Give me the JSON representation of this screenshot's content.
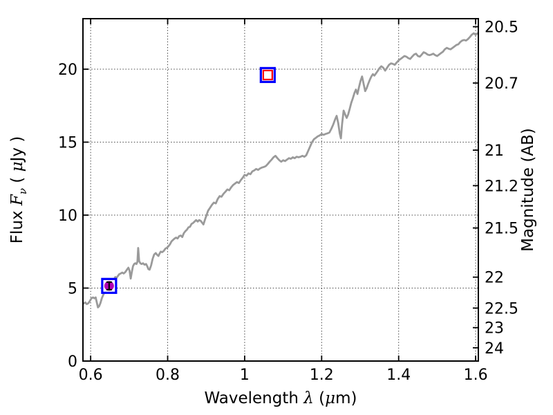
{
  "figure": {
    "background": "#ffffff",
    "spine_color": "#000000",
    "grid_color": "#444444"
  },
  "chart_data": {
    "type": "line",
    "title": "",
    "xlabel_text": "Wavelength λ (μm)",
    "ylabel_left_text": "Flux Fν ( μJy )",
    "ylabel_right_text": "Magnitude (AB)",
    "xlabel_parts": [
      {
        "text": "Wavelength  ",
        "style": "normal"
      },
      {
        "text": "λ",
        "style": "italic"
      },
      {
        "text": " (",
        "style": "normal"
      },
      {
        "text": "μ",
        "style": "italic"
      },
      {
        "text": "m)",
        "style": "normal"
      }
    ],
    "ylabel_left_parts": [
      {
        "text": "Flux  ",
        "style": "normal"
      },
      {
        "text": "F",
        "style": "italic"
      },
      {
        "text": "ν",
        "style": "italic",
        "sub": true
      },
      {
        "text": "  ( ",
        "style": "normal"
      },
      {
        "text": "μ",
        "style": "italic"
      },
      {
        "text": "Jy )",
        "style": "normal"
      }
    ],
    "ylabel_right_parts": [
      {
        "text": "Magnitude (AB)",
        "style": "normal"
      }
    ],
    "xlim": [
      0.58,
      1.607
    ],
    "ylim": [
      0,
      23.46
    ],
    "legend": "none",
    "grid": {
      "on": true,
      "style": "dotted",
      "color": "#444444",
      "x_values": [
        0.6,
        0.8,
        1.0,
        1.2,
        1.4,
        1.6
      ],
      "flux_values": [
        5,
        10,
        15,
        20
      ]
    },
    "x_ticks": [
      {
        "value": 0.6,
        "label": "0.6"
      },
      {
        "value": 0.8,
        "label": "0.8"
      },
      {
        "value": 1.0,
        "label": "1"
      },
      {
        "value": 1.2,
        "label": "1.2"
      },
      {
        "value": 1.4,
        "label": "1.4"
      },
      {
        "value": 1.6,
        "label": "1.6"
      }
    ],
    "flux_ticks": [
      {
        "value": 0,
        "label": "0"
      },
      {
        "value": 5,
        "label": "5"
      },
      {
        "value": 10,
        "label": "10"
      },
      {
        "value": 15,
        "label": "15"
      },
      {
        "value": 20,
        "label": "20"
      }
    ],
    "mag_ticks": [
      {
        "flux": 22.91,
        "label": "20.5"
      },
      {
        "flux": 19.05,
        "label": "20.7"
      },
      {
        "flux": 14.45,
        "label": "21"
      },
      {
        "flux": 12.02,
        "label": "21.2"
      },
      {
        "flux": 9.12,
        "label": "21.5"
      },
      {
        "flux": 5.75,
        "label": "22"
      },
      {
        "flux": 3.63,
        "label": "22.5"
      },
      {
        "flux": 2.29,
        "label": "23"
      },
      {
        "flux": 0.91,
        "label": "24"
      }
    ],
    "series": [
      {
        "name": "galaxy-spectrum",
        "color": "#9a9a9a",
        "linewidth": 2.8,
        "points": [
          [
            0.582,
            3.95
          ],
          [
            0.586,
            4.02
          ],
          [
            0.59,
            3.9
          ],
          [
            0.594,
            3.96
          ],
          [
            0.598,
            4.12
          ],
          [
            0.602,
            4.3
          ],
          [
            0.606,
            4.36
          ],
          [
            0.61,
            4.3
          ],
          [
            0.613,
            4.36
          ],
          [
            0.616,
            4.0
          ],
          [
            0.619,
            3.68
          ],
          [
            0.622,
            3.76
          ],
          [
            0.625,
            3.95
          ],
          [
            0.629,
            4.3
          ],
          [
            0.633,
            4.55
          ],
          [
            0.637,
            4.75
          ],
          [
            0.641,
            4.9
          ],
          [
            0.645,
            5.05
          ],
          [
            0.649,
            5.2
          ],
          [
            0.653,
            5.36
          ],
          [
            0.657,
            5.5
          ],
          [
            0.661,
            5.6
          ],
          [
            0.664,
            5.76
          ],
          [
            0.667,
            5.7
          ],
          [
            0.67,
            5.8
          ],
          [
            0.674,
            5.95
          ],
          [
            0.678,
            6.0
          ],
          [
            0.682,
            6.06
          ],
          [
            0.686,
            6.0
          ],
          [
            0.69,
            6.1
          ],
          [
            0.694,
            6.25
          ],
          [
            0.698,
            6.4
          ],
          [
            0.701,
            6.2
          ],
          [
            0.704,
            5.65
          ],
          [
            0.707,
            6.1
          ],
          [
            0.71,
            6.5
          ],
          [
            0.713,
            6.65
          ],
          [
            0.716,
            6.7
          ],
          [
            0.719,
            6.65
          ],
          [
            0.7215,
            6.8
          ],
          [
            0.7235,
            7.75
          ],
          [
            0.726,
            6.85
          ],
          [
            0.729,
            6.7
          ],
          [
            0.732,
            6.65
          ],
          [
            0.736,
            6.7
          ],
          [
            0.74,
            6.6
          ],
          [
            0.744,
            6.65
          ],
          [
            0.747,
            6.5
          ],
          [
            0.75,
            6.3
          ],
          [
            0.753,
            6.26
          ],
          [
            0.757,
            6.55
          ],
          [
            0.761,
            7.0
          ],
          [
            0.765,
            7.3
          ],
          [
            0.769,
            7.4
          ],
          [
            0.772,
            7.3
          ],
          [
            0.776,
            7.2
          ],
          [
            0.779,
            7.36
          ],
          [
            0.782,
            7.5
          ],
          [
            0.786,
            7.46
          ],
          [
            0.79,
            7.55
          ],
          [
            0.794,
            7.7
          ],
          [
            0.798,
            7.76
          ],
          [
            0.802,
            7.86
          ],
          [
            0.806,
            8.0
          ],
          [
            0.81,
            8.2
          ],
          [
            0.814,
            8.3
          ],
          [
            0.818,
            8.4
          ],
          [
            0.822,
            8.46
          ],
          [
            0.826,
            8.4
          ],
          [
            0.83,
            8.56
          ],
          [
            0.834,
            8.6
          ],
          [
            0.838,
            8.5
          ],
          [
            0.842,
            8.76
          ],
          [
            0.846,
            8.9
          ],
          [
            0.85,
            9.0
          ],
          [
            0.854,
            9.16
          ],
          [
            0.858,
            9.2
          ],
          [
            0.862,
            9.4
          ],
          [
            0.866,
            9.46
          ],
          [
            0.87,
            9.56
          ],
          [
            0.874,
            9.66
          ],
          [
            0.878,
            9.56
          ],
          [
            0.882,
            9.66
          ],
          [
            0.886,
            9.6
          ],
          [
            0.89,
            9.46
          ],
          [
            0.893,
            9.36
          ],
          [
            0.897,
            9.7
          ],
          [
            0.901,
            10.0
          ],
          [
            0.905,
            10.3
          ],
          [
            0.91,
            10.5
          ],
          [
            0.915,
            10.7
          ],
          [
            0.92,
            10.86
          ],
          [
            0.925,
            10.8
          ],
          [
            0.93,
            11.1
          ],
          [
            0.935,
            11.3
          ],
          [
            0.94,
            11.26
          ],
          [
            0.945,
            11.46
          ],
          [
            0.95,
            11.6
          ],
          [
            0.955,
            11.76
          ],
          [
            0.96,
            11.7
          ],
          [
            0.965,
            11.9
          ],
          [
            0.97,
            12.06
          ],
          [
            0.975,
            12.16
          ],
          [
            0.98,
            12.26
          ],
          [
            0.985,
            12.2
          ],
          [
            0.99,
            12.4
          ],
          [
            0.995,
            12.56
          ],
          [
            1.0,
            12.76
          ],
          [
            1.005,
            12.7
          ],
          [
            1.01,
            12.86
          ],
          [
            1.015,
            12.8
          ],
          [
            1.02,
            13.0
          ],
          [
            1.025,
            13.06
          ],
          [
            1.03,
            13.16
          ],
          [
            1.035,
            13.1
          ],
          [
            1.04,
            13.2
          ],
          [
            1.045,
            13.26
          ],
          [
            1.05,
            13.3
          ],
          [
            1.055,
            13.36
          ],
          [
            1.06,
            13.5
          ],
          [
            1.065,
            13.66
          ],
          [
            1.07,
            13.8
          ],
          [
            1.075,
            13.96
          ],
          [
            1.08,
            14.06
          ],
          [
            1.085,
            13.9
          ],
          [
            1.09,
            13.76
          ],
          [
            1.095,
            13.66
          ],
          [
            1.1,
            13.76
          ],
          [
            1.105,
            13.7
          ],
          [
            1.11,
            13.8
          ],
          [
            1.115,
            13.9
          ],
          [
            1.12,
            13.86
          ],
          [
            1.125,
            13.96
          ],
          [
            1.13,
            13.9
          ],
          [
            1.135,
            14.0
          ],
          [
            1.14,
            13.96
          ],
          [
            1.145,
            14.0
          ],
          [
            1.15,
            14.06
          ],
          [
            1.155,
            14.0
          ],
          [
            1.16,
            14.1
          ],
          [
            1.165,
            14.4
          ],
          [
            1.17,
            14.7
          ],
          [
            1.175,
            15.0
          ],
          [
            1.18,
            15.2
          ],
          [
            1.185,
            15.3
          ],
          [
            1.19,
            15.4
          ],
          [
            1.195,
            15.46
          ],
          [
            1.2,
            15.56
          ],
          [
            1.205,
            15.5
          ],
          [
            1.21,
            15.56
          ],
          [
            1.215,
            15.6
          ],
          [
            1.22,
            15.66
          ],
          [
            1.225,
            15.9
          ],
          [
            1.23,
            16.2
          ],
          [
            1.235,
            16.56
          ],
          [
            1.239,
            16.8
          ],
          [
            1.243,
            16.3
          ],
          [
            1.247,
            15.6
          ],
          [
            1.25,
            15.26
          ],
          [
            1.253,
            16.2
          ],
          [
            1.257,
            17.16
          ],
          [
            1.261,
            16.9
          ],
          [
            1.265,
            16.66
          ],
          [
            1.269,
            16.9
          ],
          [
            1.273,
            17.3
          ],
          [
            1.277,
            17.7
          ],
          [
            1.281,
            18.0
          ],
          [
            1.285,
            18.36
          ],
          [
            1.289,
            18.6
          ],
          [
            1.293,
            18.3
          ],
          [
            1.297,
            18.76
          ],
          [
            1.301,
            19.2
          ],
          [
            1.305,
            19.5
          ],
          [
            1.309,
            19.0
          ],
          [
            1.313,
            18.5
          ],
          [
            1.317,
            18.7
          ],
          [
            1.321,
            19.0
          ],
          [
            1.325,
            19.26
          ],
          [
            1.329,
            19.5
          ],
          [
            1.333,
            19.66
          ],
          [
            1.337,
            19.56
          ],
          [
            1.341,
            19.7
          ],
          [
            1.345,
            19.86
          ],
          [
            1.35,
            20.06
          ],
          [
            1.355,
            20.2
          ],
          [
            1.36,
            20.1
          ],
          [
            1.365,
            19.9
          ],
          [
            1.37,
            20.1
          ],
          [
            1.375,
            20.3
          ],
          [
            1.38,
            20.4
          ],
          [
            1.385,
            20.36
          ],
          [
            1.39,
            20.3
          ],
          [
            1.395,
            20.46
          ],
          [
            1.4,
            20.6
          ],
          [
            1.405,
            20.7
          ],
          [
            1.41,
            20.8
          ],
          [
            1.415,
            20.9
          ],
          [
            1.42,
            20.86
          ],
          [
            1.425,
            20.76
          ],
          [
            1.43,
            20.7
          ],
          [
            1.435,
            20.86
          ],
          [
            1.44,
            21.0
          ],
          [
            1.445,
            21.06
          ],
          [
            1.45,
            20.9
          ],
          [
            1.455,
            20.86
          ],
          [
            1.46,
            21.0
          ],
          [
            1.465,
            21.16
          ],
          [
            1.47,
            21.1
          ],
          [
            1.475,
            21.0
          ],
          [
            1.48,
            20.96
          ],
          [
            1.485,
            21.0
          ],
          [
            1.49,
            21.06
          ],
          [
            1.495,
            20.96
          ],
          [
            1.5,
            20.9
          ],
          [
            1.505,
            21.0
          ],
          [
            1.51,
            21.1
          ],
          [
            1.515,
            21.2
          ],
          [
            1.52,
            21.36
          ],
          [
            1.525,
            21.46
          ],
          [
            1.53,
            21.4
          ],
          [
            1.535,
            21.36
          ],
          [
            1.54,
            21.46
          ],
          [
            1.545,
            21.56
          ],
          [
            1.55,
            21.66
          ],
          [
            1.555,
            21.7
          ],
          [
            1.56,
            21.86
          ],
          [
            1.565,
            21.96
          ],
          [
            1.57,
            22.0
          ],
          [
            1.575,
            21.96
          ],
          [
            1.58,
            22.06
          ],
          [
            1.585,
            22.2
          ],
          [
            1.59,
            22.36
          ],
          [
            1.595,
            22.46
          ],
          [
            1.6,
            22.36
          ],
          [
            1.605,
            22.46
          ]
        ]
      }
    ],
    "photometry": [
      {
        "name": "observed-photometry-point",
        "x": 0.648,
        "flux": 5.15,
        "flux_err": 0.26,
        "marker": "filled-circle-with-errorbar-in-open-square",
        "circle_color": "#b300b3",
        "square_color": "#0000ff",
        "errorbar_color": "#000000"
      },
      {
        "name": "model-photometry-point",
        "x": 1.06,
        "flux": 19.6,
        "marker": "open-red-square-in-open-blue-square",
        "inner_square_color": "#ff0000",
        "square_color": "#0000ff"
      }
    ]
  }
}
